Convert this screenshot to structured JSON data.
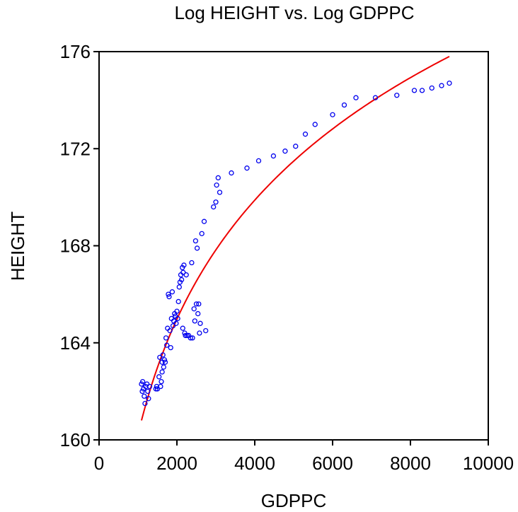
{
  "chart_data": {
    "type": "scatter",
    "title": "Log HEIGHT vs. Log GDPPC",
    "xlabel": "GDPPC",
    "ylabel": "HEIGHT",
    "xlim": [
      0,
      10000
    ],
    "ylim": [
      160,
      176
    ],
    "x_ticks": [
      0,
      2000,
      4000,
      6000,
      8000,
      10000
    ],
    "y_ticks": [
      160,
      164,
      168,
      172,
      176
    ],
    "grid": false,
    "legend": "none",
    "colors": {
      "points": "#0000ee",
      "fit": "#ee0000",
      "axes": "#000000"
    },
    "series": [
      {
        "type": "scatter",
        "marker": "open-circle",
        "points": [
          [
            1090,
            162.3
          ],
          [
            1110,
            162.0
          ],
          [
            1120,
            162.4
          ],
          [
            1140,
            162.1
          ],
          [
            1160,
            161.8
          ],
          [
            1180,
            161.5
          ],
          [
            1200,
            162.2
          ],
          [
            1230,
            162.3
          ],
          [
            1250,
            162.0
          ],
          [
            1270,
            161.7
          ],
          [
            1300,
            162.2
          ],
          [
            1460,
            162.1
          ],
          [
            1480,
            162.2
          ],
          [
            1500,
            162.1
          ],
          [
            1540,
            162.6
          ],
          [
            1560,
            163.4
          ],
          [
            1580,
            162.2
          ],
          [
            1600,
            162.4
          ],
          [
            1620,
            163.2
          ],
          [
            1620,
            162.8
          ],
          [
            1640,
            163.5
          ],
          [
            1660,
            163.0
          ],
          [
            1680,
            163.3
          ],
          [
            1700,
            163.2
          ],
          [
            1720,
            164.2
          ],
          [
            1740,
            163.9
          ],
          [
            1760,
            164.6
          ],
          [
            1780,
            166.0
          ],
          [
            1800,
            165.9
          ],
          [
            1820,
            164.5
          ],
          [
            1840,
            163.8
          ],
          [
            1860,
            165.0
          ],
          [
            1880,
            166.1
          ],
          [
            1900,
            164.7
          ],
          [
            1920,
            164.9
          ],
          [
            1940,
            165.2
          ],
          [
            1960,
            165.1
          ],
          [
            1980,
            164.8
          ],
          [
            2000,
            165.3
          ],
          [
            2020,
            165.0
          ],
          [
            2040,
            165.7
          ],
          [
            2060,
            166.3
          ],
          [
            2080,
            166.5
          ],
          [
            2100,
            166.8
          ],
          [
            2120,
            166.6
          ],
          [
            2140,
            167.1
          ],
          [
            2150,
            164.6
          ],
          [
            2160,
            166.9
          ],
          [
            2180,
            167.2
          ],
          [
            2200,
            164.4
          ],
          [
            2220,
            164.3
          ],
          [
            2240,
            166.8
          ],
          [
            2260,
            164.3
          ],
          [
            2300,
            164.3
          ],
          [
            2350,
            164.2
          ],
          [
            2380,
            167.3
          ],
          [
            2400,
            164.2
          ],
          [
            2440,
            165.4
          ],
          [
            2460,
            164.9
          ],
          [
            2480,
            168.2
          ],
          [
            2500,
            165.6
          ],
          [
            2520,
            167.9
          ],
          [
            2540,
            165.2
          ],
          [
            2560,
            165.6
          ],
          [
            2580,
            164.4
          ],
          [
            2600,
            164.8
          ],
          [
            2640,
            168.5
          ],
          [
            2700,
            169.0
          ],
          [
            2740,
            164.5
          ],
          [
            2940,
            169.6
          ],
          [
            3000,
            169.8
          ],
          [
            3020,
            170.5
          ],
          [
            3060,
            170.8
          ],
          [
            3100,
            170.2
          ],
          [
            3400,
            171.0
          ],
          [
            3800,
            171.2
          ],
          [
            4100,
            171.5
          ],
          [
            4480,
            171.7
          ],
          [
            4780,
            171.9
          ],
          [
            5050,
            172.1
          ],
          [
            5300,
            172.6
          ],
          [
            5550,
            173.0
          ],
          [
            6000,
            173.4
          ],
          [
            6300,
            173.8
          ],
          [
            6600,
            174.1
          ],
          [
            7100,
            174.1
          ],
          [
            7650,
            174.2
          ],
          [
            8100,
            174.4
          ],
          [
            8300,
            174.4
          ],
          [
            8550,
            174.5
          ],
          [
            8800,
            174.6
          ],
          [
            9000,
            174.7
          ]
        ]
      },
      {
        "type": "line",
        "model": "log(HEIGHT) = a + b*log(GDPPC)",
        "from_x": 1090,
        "to_x": 9000,
        "from_y": 160.8,
        "to_y": 175.8
      }
    ]
  }
}
